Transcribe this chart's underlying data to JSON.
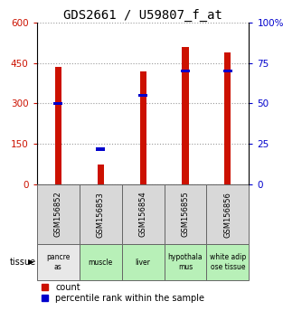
{
  "title": "GDS2661 / U59807_f_at",
  "samples": [
    "GSM156852",
    "GSM156853",
    "GSM156854",
    "GSM156855",
    "GSM156856"
  ],
  "tissues": [
    "pancre\nas",
    "muscle",
    "liver",
    "hypothala\nmus",
    "white adip\nose tissue"
  ],
  "tissue_colors": [
    "#e8e8e8",
    "#b8f0b8",
    "#b8f0b8",
    "#b8f0b8",
    "#b8f0b8"
  ],
  "counts": [
    435,
    75,
    420,
    510,
    490
  ],
  "percentiles": [
    50,
    22,
    55,
    70,
    70
  ],
  "ylim_left": [
    0,
    600
  ],
  "ylim_right": [
    0,
    100
  ],
  "yticks_left": [
    0,
    150,
    300,
    450,
    600
  ],
  "yticks_right": [
    0,
    25,
    50,
    75,
    100
  ],
  "bar_color": "#cc1100",
  "percentile_color": "#0000cc",
  "background_color": "#ffffff",
  "grid_color": "#999999",
  "title_fontsize": 10,
  "tick_fontsize": 7.5,
  "legend_fontsize": 7,
  "bar_width": 0.15
}
